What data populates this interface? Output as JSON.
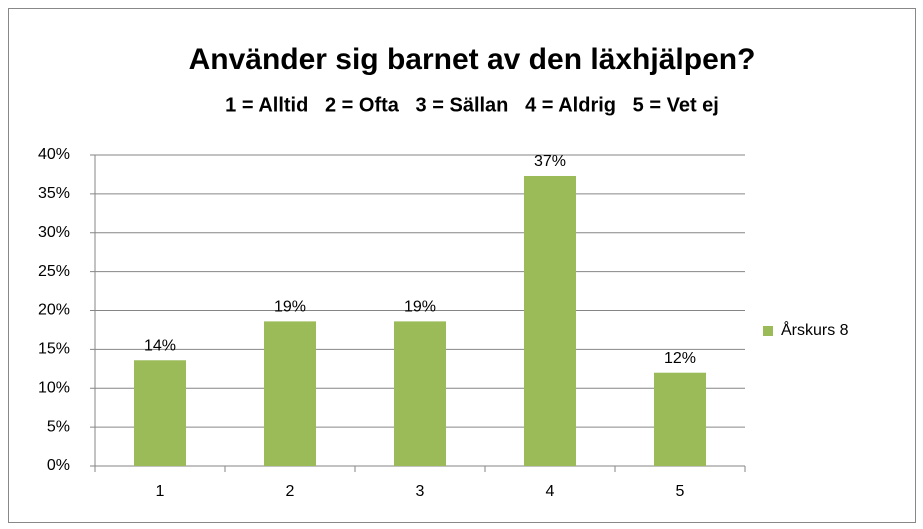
{
  "chart_data": {
    "type": "bar",
    "title": "Använder sig barnet av den läxhjälpen?",
    "subtitle": "1 = Alltid   2 = Ofta   3 = Sällan   4 = Aldrig   5 = Vet ej",
    "categories": [
      "1",
      "2",
      "3",
      "4",
      "5"
    ],
    "series": [
      {
        "name": "Årskurs 8",
        "color": "#9bbb59",
        "values": [
          13.6,
          18.6,
          18.6,
          37.3,
          12.0
        ],
        "value_labels": [
          "14%",
          "19%",
          "19%",
          "37%",
          "12%"
        ]
      }
    ],
    "ylim": [
      0,
      40
    ],
    "yticks": [
      {
        "value": 0,
        "label": "0%"
      },
      {
        "value": 5,
        "label": "5%"
      },
      {
        "value": 10,
        "label": "10%"
      },
      {
        "value": 15,
        "label": "15%"
      },
      {
        "value": 20,
        "label": "20%"
      },
      {
        "value": 25,
        "label": "25%"
      },
      {
        "value": 30,
        "label": "30%"
      },
      {
        "value": 35,
        "label": "35%"
      },
      {
        "value": 40,
        "label": "40%"
      }
    ],
    "grid": true,
    "legend": "right"
  }
}
